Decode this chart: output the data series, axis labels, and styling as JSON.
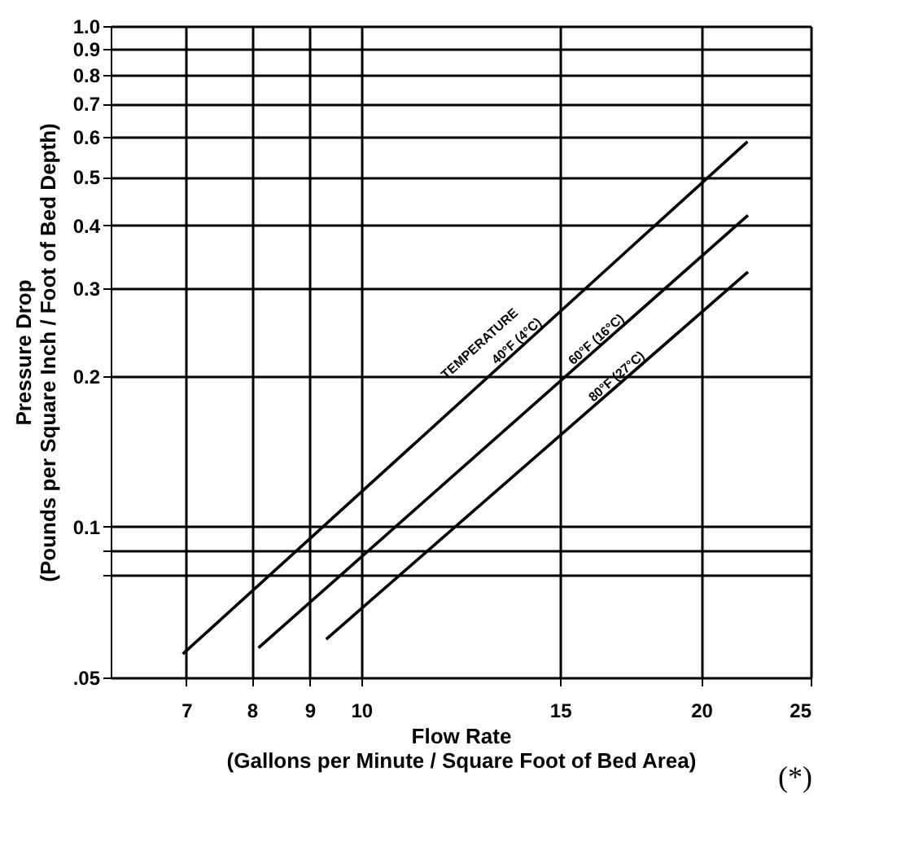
{
  "chart_data": {
    "type": "line",
    "xlabel": "Flow Rate\n(Gallons per Minute / Square Foot of Bed Area)",
    "ylabel": "Pressure Drop\n(Pounds per Square Inch / Foot of Bed Depth)",
    "log": "xy",
    "grid": true,
    "legend": false,
    "marker": "none",
    "line_style": "solid",
    "xlim": [
      6,
      25
    ],
    "xticks": [
      7,
      8,
      9,
      10,
      15,
      20,
      25
    ],
    "ylim": [
      0.05,
      1.0
    ],
    "yticks": [
      {
        "value": 0.05,
        "label": ".05"
      },
      {
        "value": 0.08,
        "label": null
      },
      {
        "value": 0.09,
        "label": null
      },
      0.1,
      0.2,
      0.3,
      0.4,
      0.5,
      0.6,
      0.7,
      0.8,
      0.9,
      {
        "value": 1.0,
        "label": "1.0"
      }
    ],
    "series": [
      {
        "name": "40°F (4°C)",
        "color": "#000000",
        "x": [
          6.95,
          21.98
        ],
        "values": [
          0.0557,
          0.588
        ]
      },
      {
        "name": "60°F (16°C)",
        "color": "#000000",
        "x": [
          8.11,
          22.0
        ],
        "values": [
          0.0573,
          0.419
        ]
      },
      {
        "name": "80°F (27°C)",
        "color": "#000000",
        "x": [
          9.31,
          22.0
        ],
        "values": [
          0.0596,
          0.323
        ]
      }
    ],
    "annotations": [
      "TEMPERATURE",
      "(*)"
    ]
  }
}
